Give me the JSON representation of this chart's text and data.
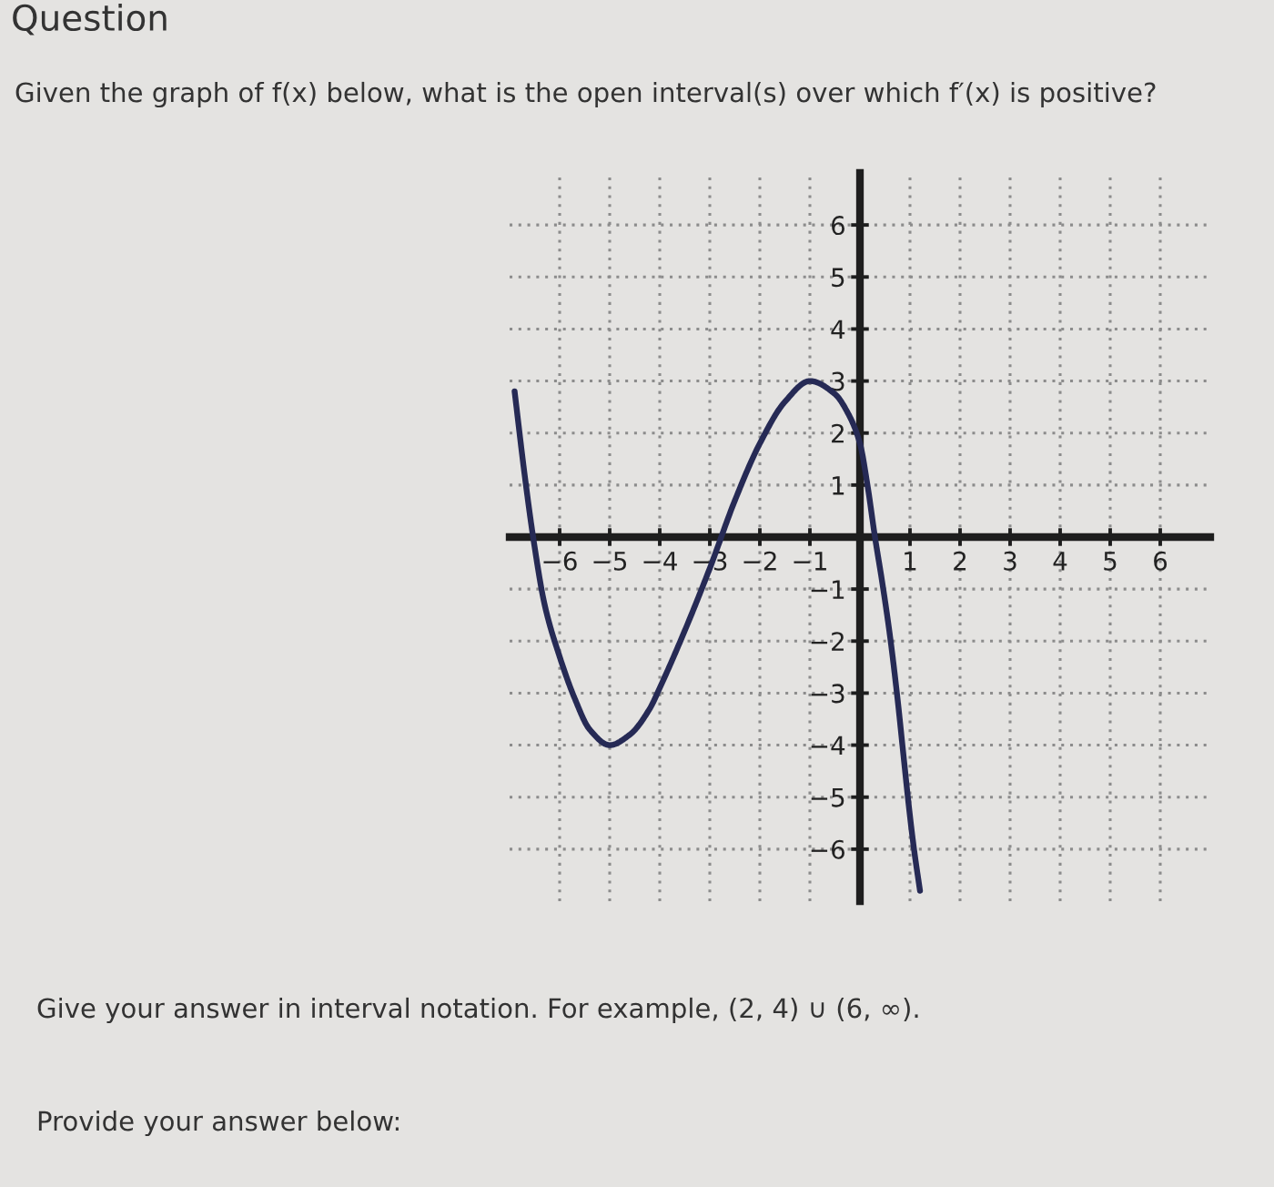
{
  "chart_data": {
    "type": "line",
    "title": "Question",
    "subtitle": "Given the graph of f(x) below, what is the open interval(s) over which f′(x) is positive?",
    "annotations": [
      "Give your answer in interval notation. For example, (2, 4) ∪ (6, ∞).",
      "Provide your answer below:"
    ],
    "x": [
      -6.9,
      -6.7,
      -6.53,
      -6.3,
      -6.0,
      -5.7,
      -5.4,
      -5.0,
      -4.6,
      -4.2,
      -4.0,
      -3.5,
      -3.0,
      -2.5,
      -2.0,
      -1.5,
      -1.0,
      -0.5,
      -0.25,
      0,
      0.15,
      0.3,
      0.45,
      0.6,
      0.75,
      0.87,
      0.98,
      1.08,
      1.2
    ],
    "series": [
      {
        "color": "#262a55",
        "values": [
          2.8,
          1.2,
          0,
          -1.3,
          -2.3,
          -3.1,
          -3.7,
          -4.0,
          -3.8,
          -3.3,
          -2.9,
          -1.8,
          -0.6,
          0.7,
          1.8,
          2.6,
          3.0,
          2.75,
          2.4,
          1.8,
          1.0,
          0,
          -0.9,
          -1.9,
          -3.1,
          -4.2,
          -5.2,
          -6.0,
          -6.8
        ]
      }
    ],
    "xlim": [
      -7,
      7
    ],
    "ylim": [
      -7,
      7
    ],
    "xticks": [
      {
        "value": -6,
        "label": "−6"
      },
      {
        "value": -5,
        "label": "−5"
      },
      {
        "value": -4,
        "label": "−4"
      },
      {
        "value": -3,
        "label": "−3"
      },
      {
        "value": -2,
        "label": "−2"
      },
      {
        "value": -1,
        "label": "−1"
      },
      1,
      2,
      3,
      4,
      5,
      6
    ],
    "yticks": [
      {
        "value": -6,
        "label": "−6"
      },
      {
        "value": -5,
        "label": "−5"
      },
      {
        "value": -4,
        "label": "−4"
      },
      {
        "value": -3,
        "label": "−3"
      },
      {
        "value": -2,
        "label": "−2"
      },
      {
        "value": -1,
        "label": "−1"
      },
      1,
      2,
      3,
      4,
      5,
      6
    ],
    "grid": true
  }
}
